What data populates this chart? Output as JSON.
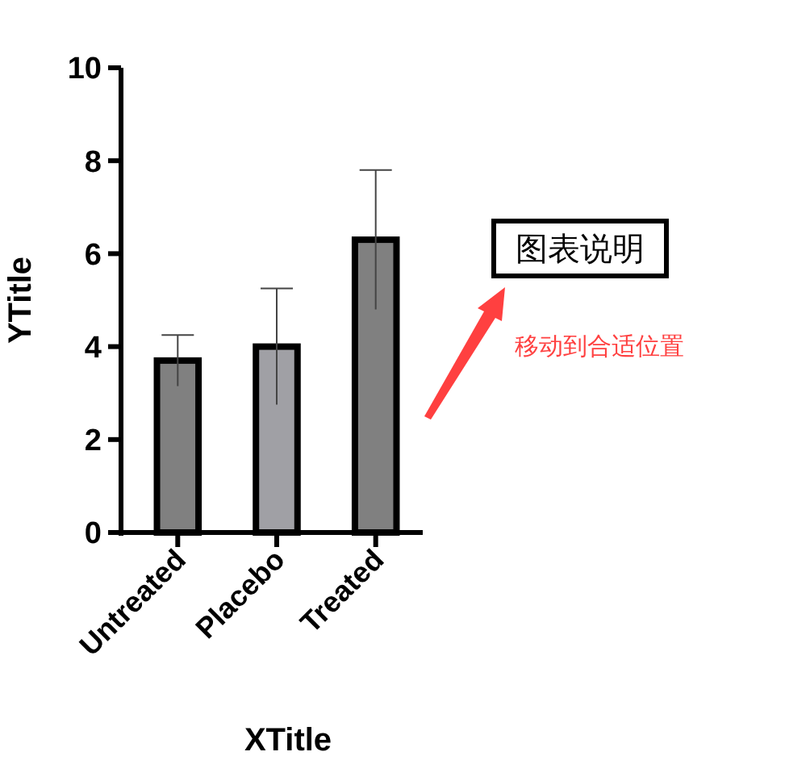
{
  "chart_data": {
    "type": "bar",
    "xlabel": "XTitle",
    "ylabel": "YTitle",
    "categories": [
      "Untreated",
      "Placebo",
      "Treated"
    ],
    "values": [
      3.7,
      4.0,
      6.3
    ],
    "colors": [
      "#808080",
      "#a0a0a5",
      "#808080"
    ],
    "errors": [
      0.55,
      1.25,
      1.5
    ],
    "ylim": [
      0,
      10
    ],
    "yticks": [
      0,
      2,
      4,
      6,
      8,
      10
    ],
    "grid": false,
    "annotations": [
      "图表说明",
      "移动到合适位置"
    ]
  }
}
